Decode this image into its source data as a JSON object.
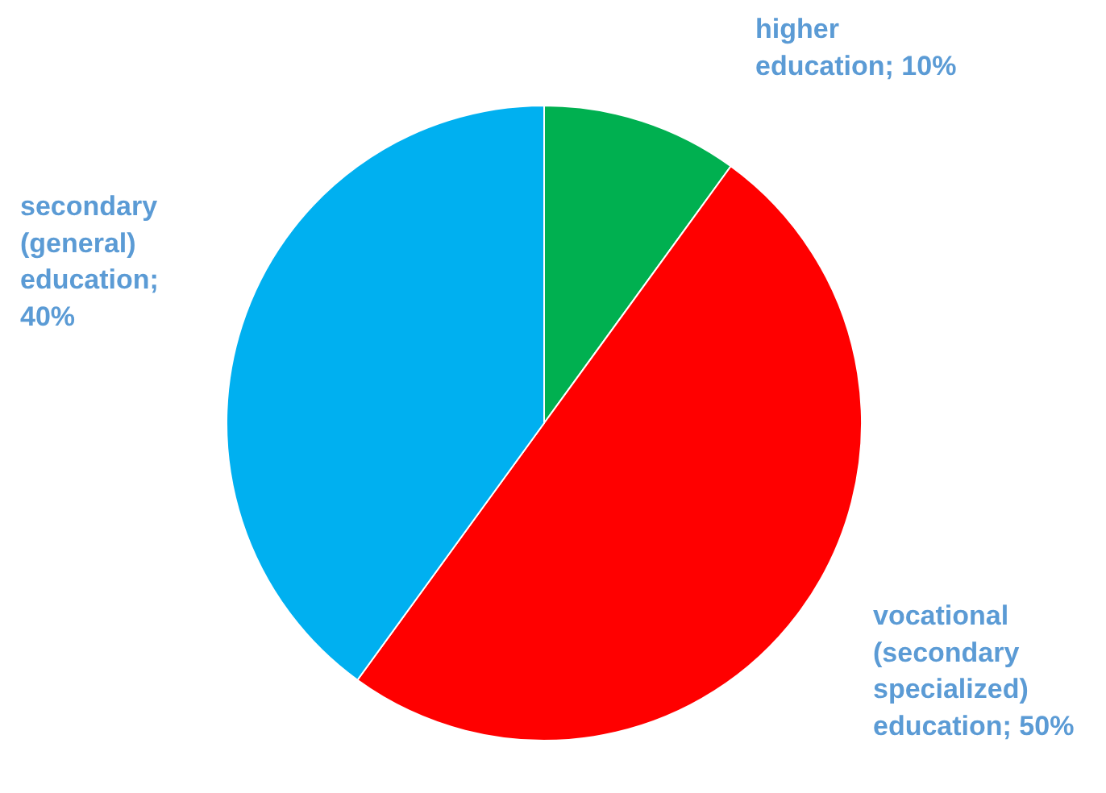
{
  "chart_data": {
    "type": "pie",
    "categories": [
      "higher education; 10%",
      "vocational (secondary specialized) education; 50%",
      "secondary (general) education; 40%"
    ],
    "values": [
      10,
      50,
      40
    ],
    "colors": [
      "#00b050",
      "#ff0000",
      "#00b0f0"
    ]
  }
}
